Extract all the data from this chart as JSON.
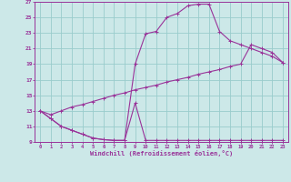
{
  "xlabel": "Windchill (Refroidissement éolien,°C)",
  "background_color": "#cce8e8",
  "grid_color": "#99cccc",
  "line_color": "#993399",
  "xlim": [
    -0.5,
    23.5
  ],
  "ylim": [
    9,
    27
  ],
  "xticks": [
    0,
    1,
    2,
    3,
    4,
    5,
    6,
    7,
    8,
    9,
    10,
    11,
    12,
    13,
    14,
    15,
    16,
    17,
    18,
    19,
    20,
    21,
    22,
    23
  ],
  "yticks": [
    9,
    11,
    13,
    15,
    17,
    19,
    21,
    23,
    25,
    27
  ],
  "line1_x": [
    0,
    1,
    2,
    3,
    4,
    5,
    6,
    7,
    8,
    9,
    10,
    11,
    12,
    13,
    14,
    15,
    16,
    17,
    18,
    19,
    20,
    21,
    22,
    23
  ],
  "line1_y": [
    13,
    12,
    11,
    10.5,
    10,
    9.5,
    9.3,
    9.2,
    9.2,
    14.0,
    9.2,
    9.2,
    9.2,
    9.2,
    9.2,
    9.2,
    9.2,
    9.2,
    9.2,
    9.2,
    9.2,
    9.2,
    9.2,
    9.2
  ],
  "line2_x": [
    0,
    1,
    2,
    3,
    4,
    5,
    6,
    7,
    8,
    9,
    10,
    11,
    12,
    13,
    14,
    15,
    16,
    17,
    18,
    19,
    20,
    21,
    22,
    23
  ],
  "line2_y": [
    13,
    12,
    11,
    10.5,
    10,
    9.5,
    9.3,
    9.2,
    9.2,
    19.0,
    22.9,
    23.2,
    25.0,
    25.5,
    26.5,
    26.7,
    26.7,
    23.2,
    22,
    21.5,
    21.0,
    20.5,
    20.0,
    19.2
  ],
  "line3_x": [
    0,
    1,
    2,
    3,
    4,
    5,
    6,
    7,
    8,
    9,
    10,
    11,
    12,
    13,
    14,
    15,
    16,
    17,
    18,
    19,
    20,
    21,
    22,
    23
  ],
  "line3_y": [
    13,
    12.5,
    13.0,
    13.5,
    13.8,
    14.2,
    14.6,
    15.0,
    15.3,
    15.7,
    16.0,
    16.3,
    16.7,
    17.0,
    17.3,
    17.7,
    18.0,
    18.3,
    18.7,
    19.0,
    21.5,
    21.0,
    20.5,
    19.2
  ]
}
